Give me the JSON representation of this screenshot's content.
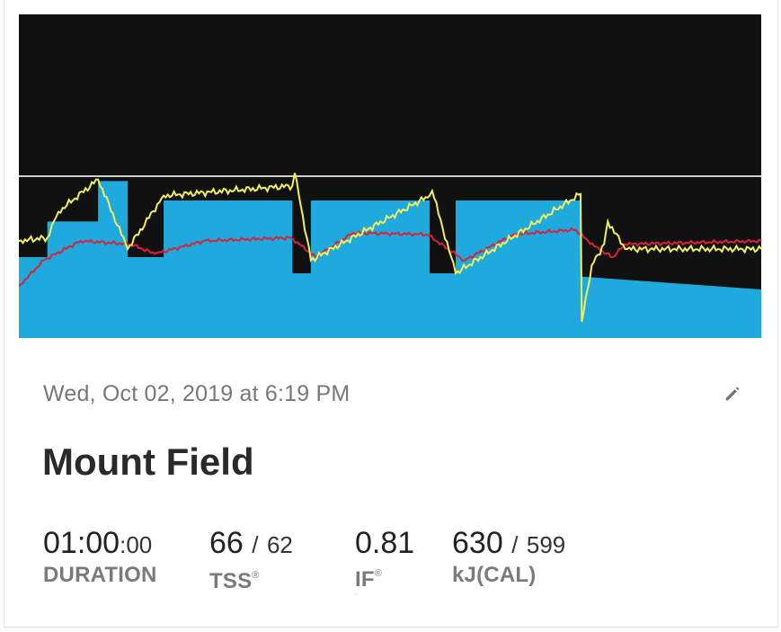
{
  "card": {
    "date_text": "Wed, Oct 02, 2019 at 6:19 PM",
    "title": "Mount Field",
    "metrics": {
      "duration": {
        "main": "01:00",
        "secondary": ":00",
        "label": "DURATION"
      },
      "tss": {
        "value": "66",
        "separator": "/",
        "target": "62",
        "label": "TSS",
        "mark": "®"
      },
      "if": {
        "value": "0.81",
        "label": "IF",
        "mark": "®",
        "sub_label": "."
      },
      "kj": {
        "value": "630",
        "separator": "/",
        "target": "599",
        "label": "kJ(CAL)"
      }
    }
  },
  "icons": {
    "edit": "pencil-icon"
  },
  "chart_data": {
    "type": "area",
    "colors": {
      "background": "#111111",
      "target_power": "#1fa9dc",
      "power": "#f2f05a",
      "heart_rate": "#d8223b",
      "threshold_line": "#cfcfcf"
    },
    "threshold": 100,
    "ylim": [
      0,
      200
    ],
    "xlim": [
      0,
      60
    ],
    "series": [
      {
        "key": "target_power",
        "x": [
          0,
          2.3,
          2.3,
          3.2,
          3.2,
          6.4,
          6.4,
          8.8,
          8.8,
          11.7,
          11.7,
          22.1,
          22.1,
          23.6,
          23.6,
          33.2,
          33.2,
          35.3,
          35.3,
          45.4,
          45.4,
          60
        ],
        "y": [
          50,
          50,
          72,
          72,
          72,
          72,
          97,
          97,
          50,
          50,
          85,
          85,
          40,
          40,
          85,
          85,
          40,
          40,
          85,
          85,
          38,
          30
        ]
      },
      {
        "key": "power",
        "x": [
          0,
          2.3,
          3.2,
          6.4,
          8.8,
          11.7,
          22.1,
          22.3,
          23.6,
          33.2,
          33.4,
          35.3,
          45.4,
          45.5,
          46.3,
          47.3,
          47.6,
          49,
          60
        ],
        "y": [
          60,
          62,
          78,
          98,
          55,
          88,
          94,
          102,
          48,
          88,
          91,
          40,
          89,
          10,
          45,
          58,
          72,
          55,
          55
        ]
      },
      {
        "key": "heart_rate",
        "x": [
          0,
          2,
          5,
          9,
          11,
          15,
          22,
          24,
          27,
          33,
          36,
          40,
          45,
          46,
          47,
          48,
          49,
          60
        ],
        "y": [
          32,
          48,
          60,
          58,
          52,
          60,
          62,
          50,
          65,
          64,
          48,
          64,
          67,
          60,
          54,
          50,
          58,
          60
        ]
      }
    ]
  }
}
